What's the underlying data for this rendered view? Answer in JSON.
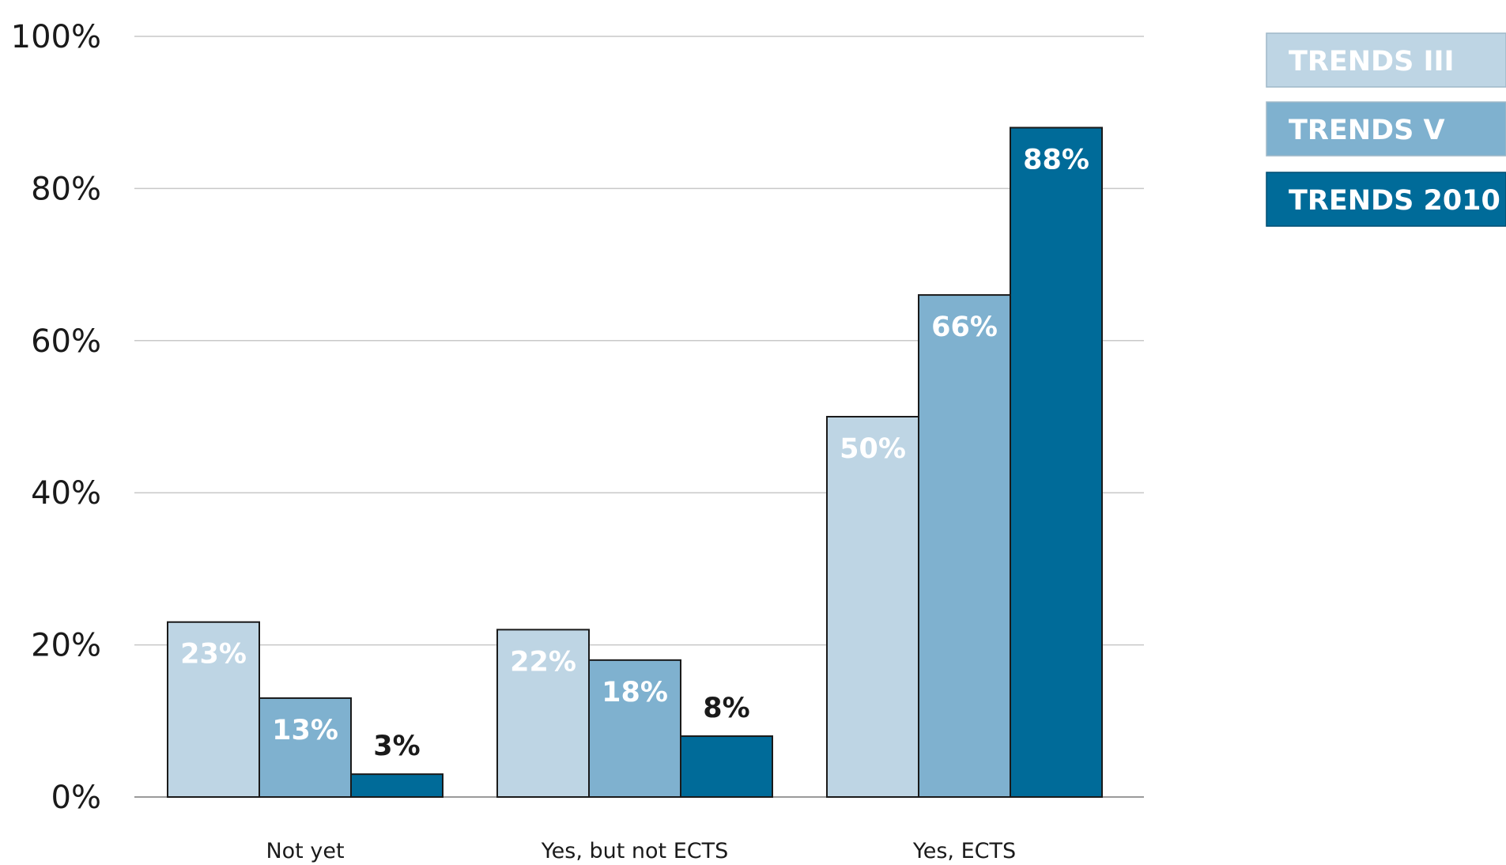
{
  "chart_data": {
    "type": "bar",
    "categories": [
      "Not yet",
      "Yes, but not ECTS",
      "Yes, ECTS"
    ],
    "series": [
      {
        "name": "TRENDS III",
        "values": [
          23,
          22,
          50
        ],
        "labels": [
          "23%",
          "22%",
          "50%"
        ],
        "color": "#bed5e4",
        "label_color": "#ffffff"
      },
      {
        "name": "TRENDS V",
        "values": [
          13,
          18,
          66
        ],
        "labels": [
          "13%",
          "18%",
          "66%"
        ],
        "color": "#7fb1cf",
        "label_color": "#ffffff"
      },
      {
        "name": "TRENDS 2010",
        "values": [
          3,
          8,
          88
        ],
        "labels": [
          "3%",
          "8%",
          "88%"
        ],
        "color": "#006b99",
        "label_color": "#ffffff"
      }
    ],
    "ylim": [
      0,
      100
    ],
    "yticks": [
      0,
      20,
      40,
      60,
      80,
      100
    ],
    "ytick_labels": [
      "0%",
      "20%",
      "40%",
      "60%",
      "80%",
      "100%"
    ],
    "title": "",
    "xlabel": "",
    "ylabel": "",
    "grid": true,
    "legend_position": "top-right",
    "dark_label_color": "#1a1a1a",
    "gridline_color": "#c8c8c8",
    "bar_outline_color": "#1a1a1a"
  }
}
